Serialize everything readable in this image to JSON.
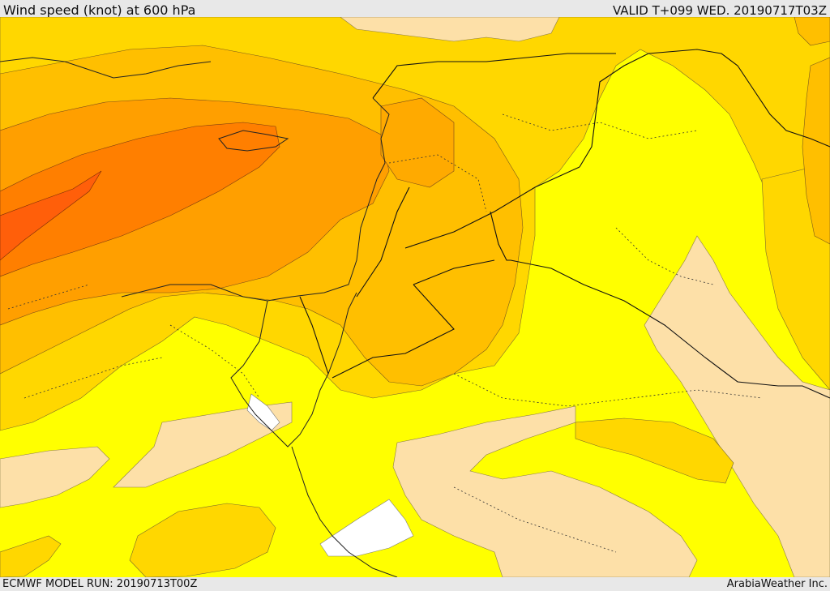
{
  "header": {
    "title": "Wind speed (knot) at 600 hPa",
    "valid": "VALID T+099 WED. 20190717T03Z"
  },
  "footer": {
    "model_run": "ECMWF MODEL RUN: 20190713T00Z",
    "credit": "ArabiaWeather Inc."
  },
  "map": {
    "variable": "wind speed",
    "unit": "knot",
    "level": "600 hPa",
    "colors": {
      "calm": "#ffffff",
      "light": "#fde0a8",
      "moderate": "#ffff00",
      "fresh": "#ffd700",
      "strong": "#ffbf00",
      "very_strong": "#ff9f00",
      "gale": "#ff7f00",
      "storm": "#ff5f0a"
    }
  }
}
